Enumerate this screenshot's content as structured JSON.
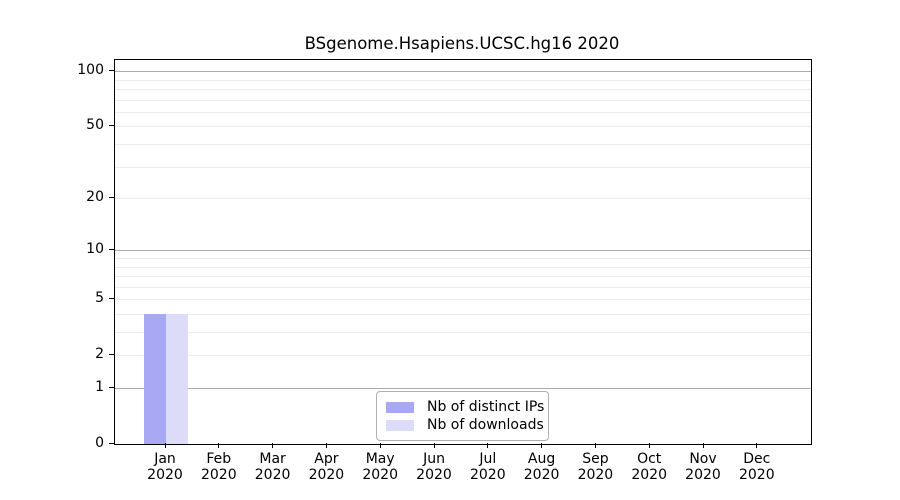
{
  "chart_data": {
    "type": "bar",
    "title": "BSgenome.Hsapiens.UCSC.hg16 2020",
    "categories": [
      "Jan",
      "Feb",
      "Mar",
      "Apr",
      "May",
      "Jun",
      "Jul",
      "Aug",
      "Sep",
      "Oct",
      "Nov",
      "Dec"
    ],
    "category_year": "2020",
    "series": [
      {
        "name": "Nb of distinct IPs",
        "color": "#a8a8f5",
        "values": [
          4,
          0,
          0,
          0,
          0,
          0,
          0,
          0,
          0,
          0,
          0,
          0
        ]
      },
      {
        "name": "Nb of downloads",
        "color": "#dcdcf9",
        "values": [
          4,
          0,
          0,
          0,
          0,
          0,
          0,
          0,
          0,
          0,
          0,
          0
        ]
      }
    ],
    "xlabel": "",
    "ylabel": "",
    "yscale": "log1p",
    "ylim": [
      0,
      115
    ],
    "yticks": [
      0,
      1,
      2,
      5,
      10,
      20,
      50,
      100
    ],
    "grid": {
      "major_values": [
        1,
        10,
        100
      ],
      "minor_values": [
        2,
        3,
        4,
        5,
        6,
        7,
        8,
        9,
        20,
        30,
        40,
        50,
        60,
        70,
        80,
        90
      ],
      "major_color": "#ababab",
      "minor_color": "#ebebeb"
    },
    "legend": {
      "position": "bottom-center"
    },
    "colors": {
      "axis_border": "#000000",
      "text": "#000000",
      "background": "#ffffff"
    }
  }
}
